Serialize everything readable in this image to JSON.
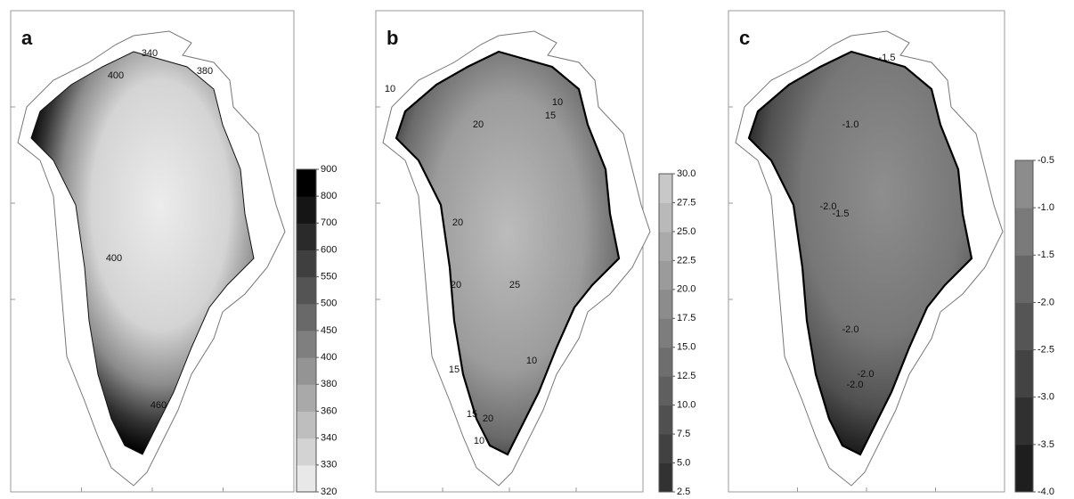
{
  "panels": [
    {
      "label": "a",
      "colorbar": [
        320,
        330,
        340,
        360,
        380,
        400,
        450,
        500,
        550,
        600,
        700,
        800,
        900
      ],
      "contour_labels": [
        "400",
        "340",
        "380",
        "400",
        "460"
      ]
    },
    {
      "label": "b",
      "colorbar": [
        2.5,
        {
          "value": 5,
          "label": "5.0"
        },
        7.5,
        {
          "value": 10,
          "label": "10.0"
        },
        12.5,
        {
          "value": 15,
          "label": "15.0"
        },
        17.5,
        {
          "value": 20,
          "label": "20.0"
        },
        22.5,
        {
          "value": 25,
          "label": "25.0"
        },
        27.5,
        {
          "value": 30,
          "label": "30.0"
        }
      ],
      "contour_labels": [
        "10",
        "15",
        "10",
        "20",
        "20",
        "25",
        "20",
        "15",
        "10",
        "15",
        "20",
        "10"
      ]
    },
    {
      "label": "c",
      "colorbar": [
        {
          "value": -4,
          "label": "-4.0"
        },
        -3.5,
        {
          "value": -3,
          "label": "-3.0"
        },
        -2.5,
        {
          "value": -2,
          "label": "-2.0"
        },
        -1.5,
        {
          "value": -1,
          "label": "-1.0"
        },
        -0.5
      ],
      "contour_labels": [
        "-1.5",
        "-1.0",
        "-2.0",
        "-1.5",
        "-2.0",
        "-2.0",
        "-2.0"
      ]
    }
  ]
}
